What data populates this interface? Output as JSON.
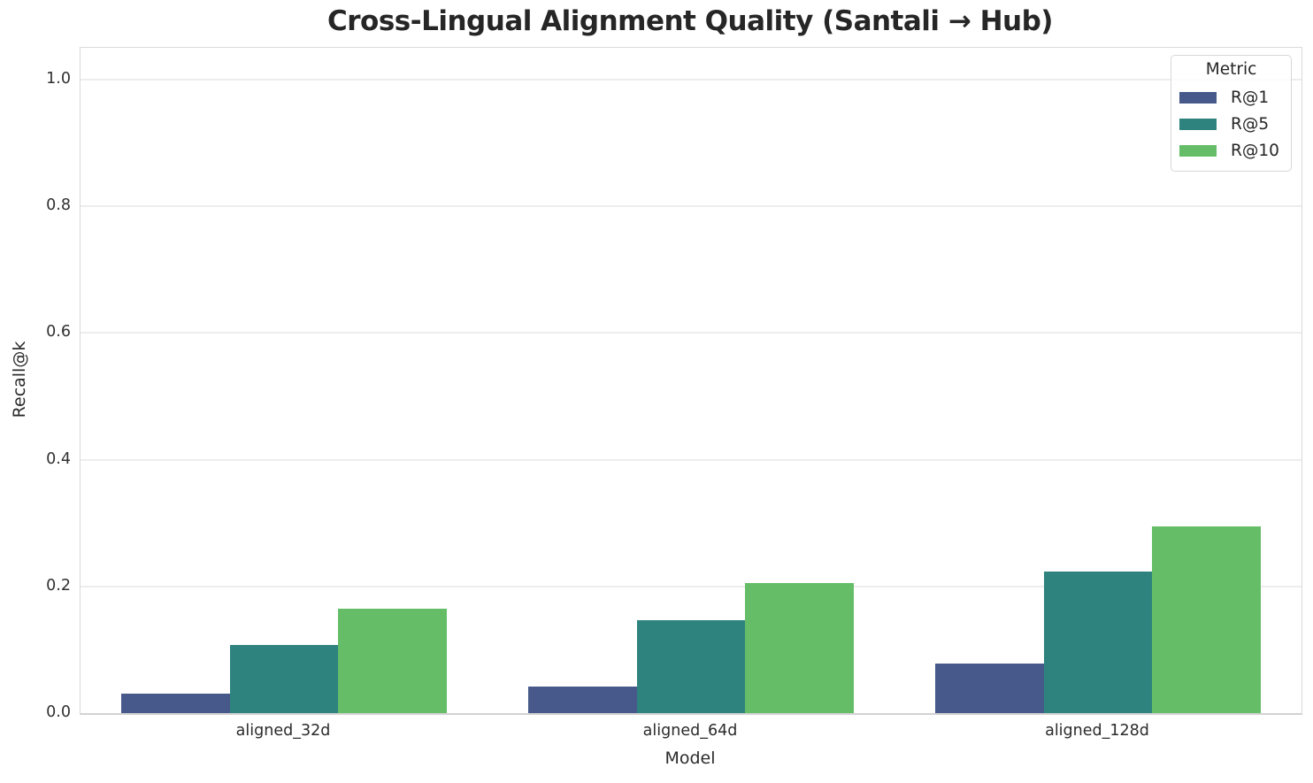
{
  "chart_data": {
    "type": "bar",
    "title": "Cross-Lingual Alignment Quality (Santali → Hub)",
    "xlabel": "Model",
    "ylabel": "Recall@k",
    "legend_title": "Metric",
    "legend_position": "upper right",
    "categories": [
      "aligned_32d",
      "aligned_64d",
      "aligned_128d"
    ],
    "series": [
      {
        "name": "R@1",
        "color": "#46598a",
        "values": [
          0.031,
          0.042,
          0.078
        ]
      },
      {
        "name": "R@5",
        "color": "#2e837e",
        "values": [
          0.107,
          0.146,
          0.224
        ]
      },
      {
        "name": "R@10",
        "color": "#65bd68",
        "values": [
          0.165,
          0.205,
          0.295
        ]
      }
    ],
    "ylim": [
      0,
      1.05
    ],
    "yticks": [
      0.0,
      0.2,
      0.4,
      0.6,
      0.8,
      1.0
    ],
    "ytick_labels": [
      "0.0",
      "0.2",
      "0.4",
      "0.6",
      "0.8",
      "1.0"
    ],
    "grid": "horizontal",
    "bar_group_fraction": 0.8
  }
}
